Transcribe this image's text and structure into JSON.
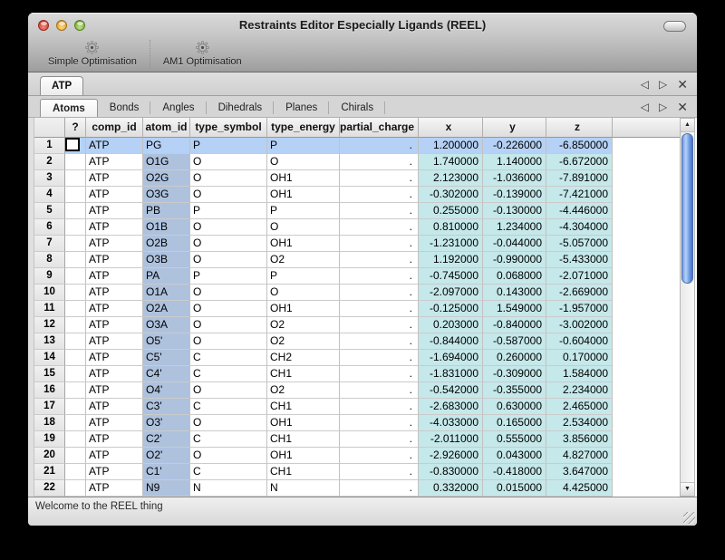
{
  "window": {
    "title": "Restraints Editor Especially Ligands (REEL)"
  },
  "toolbar": {
    "items": [
      {
        "label": "Simple Optimisation",
        "icon": "gear-icon"
      },
      {
        "label": "AM1 Optimisation",
        "icon": "gear-icon"
      }
    ]
  },
  "ligand_tabs": {
    "tabs": [
      {
        "label": "ATP",
        "selected": true
      }
    ],
    "controls": {
      "prev": "◁",
      "next": "▷",
      "close": "✕"
    }
  },
  "section_tabs": {
    "selected": "Atoms",
    "tabs": [
      {
        "label": "Atoms"
      },
      {
        "label": "Bonds"
      },
      {
        "label": "Angles"
      },
      {
        "label": "Dihedrals"
      },
      {
        "label": "Planes"
      },
      {
        "label": "Chirals"
      }
    ],
    "controls": {
      "prev": "◁",
      "next": "▷",
      "close": "✕"
    }
  },
  "table": {
    "columns": [
      "",
      "?",
      "comp_id",
      "atom_id",
      "type_symbol",
      "type_energy",
      "partial_charge",
      "x",
      "y",
      "z"
    ],
    "selected_row": 1,
    "rows": [
      {
        "n": "1",
        "comp_id": "ATP",
        "atom_id": "PG",
        "type_symbol": "P",
        "type_energy": "P",
        "partial_charge": ".",
        "x": "1.200000",
        "y": "-0.226000",
        "z": "-6.850000"
      },
      {
        "n": "2",
        "comp_id": "ATP",
        "atom_id": "O1G",
        "type_symbol": "O",
        "type_energy": "O",
        "partial_charge": ".",
        "x": "1.740000",
        "y": "1.140000",
        "z": "-6.672000"
      },
      {
        "n": "3",
        "comp_id": "ATP",
        "atom_id": "O2G",
        "type_symbol": "O",
        "type_energy": "OH1",
        "partial_charge": ".",
        "x": "2.123000",
        "y": "-1.036000",
        "z": "-7.891000"
      },
      {
        "n": "4",
        "comp_id": "ATP",
        "atom_id": "O3G",
        "type_symbol": "O",
        "type_energy": "OH1",
        "partial_charge": ".",
        "x": "-0.302000",
        "y": "-0.139000",
        "z": "-7.421000"
      },
      {
        "n": "5",
        "comp_id": "ATP",
        "atom_id": "PB",
        "type_symbol": "P",
        "type_energy": "P",
        "partial_charge": ".",
        "x": "0.255000",
        "y": "-0.130000",
        "z": "-4.446000"
      },
      {
        "n": "6",
        "comp_id": "ATP",
        "atom_id": "O1B",
        "type_symbol": "O",
        "type_energy": "O",
        "partial_charge": ".",
        "x": "0.810000",
        "y": "1.234000",
        "z": "-4.304000"
      },
      {
        "n": "7",
        "comp_id": "ATP",
        "atom_id": "O2B",
        "type_symbol": "O",
        "type_energy": "OH1",
        "partial_charge": ".",
        "x": "-1.231000",
        "y": "-0.044000",
        "z": "-5.057000"
      },
      {
        "n": "8",
        "comp_id": "ATP",
        "atom_id": "O3B",
        "type_symbol": "O",
        "type_energy": "O2",
        "partial_charge": ".",
        "x": "1.192000",
        "y": "-0.990000",
        "z": "-5.433000"
      },
      {
        "n": "9",
        "comp_id": "ATP",
        "atom_id": "PA",
        "type_symbol": "P",
        "type_energy": "P",
        "partial_charge": ".",
        "x": "-0.745000",
        "y": "0.068000",
        "z": "-2.071000"
      },
      {
        "n": "10",
        "comp_id": "ATP",
        "atom_id": "O1A",
        "type_symbol": "O",
        "type_energy": "O",
        "partial_charge": ".",
        "x": "-2.097000",
        "y": "0.143000",
        "z": "-2.669000"
      },
      {
        "n": "11",
        "comp_id": "ATP",
        "atom_id": "O2A",
        "type_symbol": "O",
        "type_energy": "OH1",
        "partial_charge": ".",
        "x": "-0.125000",
        "y": "1.549000",
        "z": "-1.957000"
      },
      {
        "n": "12",
        "comp_id": "ATP",
        "atom_id": "O3A",
        "type_symbol": "O",
        "type_energy": "O2",
        "partial_charge": ".",
        "x": "0.203000",
        "y": "-0.840000",
        "z": "-3.002000"
      },
      {
        "n": "13",
        "comp_id": "ATP",
        "atom_id": "O5'",
        "type_symbol": "O",
        "type_energy": "O2",
        "partial_charge": ".",
        "x": "-0.844000",
        "y": "-0.587000",
        "z": "-0.604000"
      },
      {
        "n": "14",
        "comp_id": "ATP",
        "atom_id": "C5'",
        "type_symbol": "C",
        "type_energy": "CH2",
        "partial_charge": ".",
        "x": "-1.694000",
        "y": "0.260000",
        "z": "0.170000"
      },
      {
        "n": "15",
        "comp_id": "ATP",
        "atom_id": "C4'",
        "type_symbol": "C",
        "type_energy": "CH1",
        "partial_charge": ".",
        "x": "-1.831000",
        "y": "-0.309000",
        "z": "1.584000"
      },
      {
        "n": "16",
        "comp_id": "ATP",
        "atom_id": "O4'",
        "type_symbol": "O",
        "type_energy": "O2",
        "partial_charge": ".",
        "x": "-0.542000",
        "y": "-0.355000",
        "z": "2.234000"
      },
      {
        "n": "17",
        "comp_id": "ATP",
        "atom_id": "C3'",
        "type_symbol": "C",
        "type_energy": "CH1",
        "partial_charge": ".",
        "x": "-2.683000",
        "y": "0.630000",
        "z": "2.465000"
      },
      {
        "n": "18",
        "comp_id": "ATP",
        "atom_id": "O3'",
        "type_symbol": "O",
        "type_energy": "OH1",
        "partial_charge": ".",
        "x": "-4.033000",
        "y": "0.165000",
        "z": "2.534000"
      },
      {
        "n": "19",
        "comp_id": "ATP",
        "atom_id": "C2'",
        "type_symbol": "C",
        "type_energy": "CH1",
        "partial_charge": ".",
        "x": "-2.011000",
        "y": "0.555000",
        "z": "3.856000"
      },
      {
        "n": "20",
        "comp_id": "ATP",
        "atom_id": "O2'",
        "type_symbol": "O",
        "type_energy": "OH1",
        "partial_charge": ".",
        "x": "-2.926000",
        "y": "0.043000",
        "z": "4.827000"
      },
      {
        "n": "21",
        "comp_id": "ATP",
        "atom_id": "C1'",
        "type_symbol": "C",
        "type_energy": "CH1",
        "partial_charge": ".",
        "x": "-0.830000",
        "y": "-0.418000",
        "z": "3.647000"
      },
      {
        "n": "22",
        "comp_id": "ATP",
        "atom_id": "N9",
        "type_symbol": "N",
        "type_energy": "N",
        "partial_charge": ".",
        "x": "0.332000",
        "y": "0.015000",
        "z": "4.425000"
      }
    ]
  },
  "status_bar": {
    "text": "Welcome to the REEL thing"
  },
  "colors": {
    "selection": "#b5d1f5",
    "atom_id_column": "#aec2de",
    "xyz_columns": "#c5e8ea",
    "scrollbar_thumb": "#6490dd",
    "traffic_red": "#d84a3c",
    "traffic_yellow": "#e8a73c",
    "traffic_green": "#84b83e"
  }
}
